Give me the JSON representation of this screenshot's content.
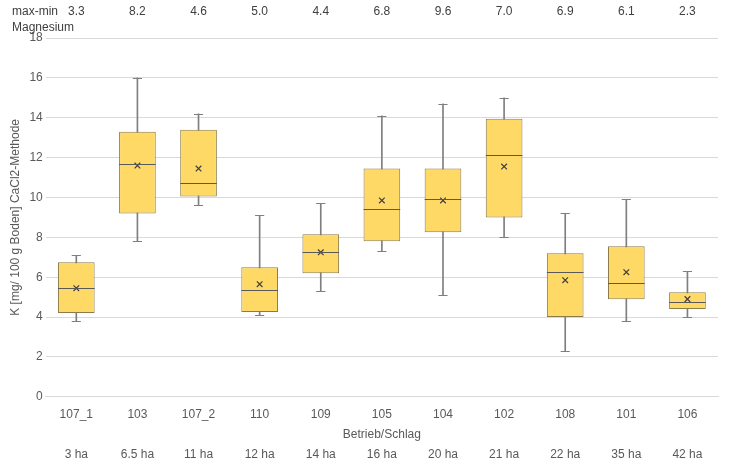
{
  "chart_data": {
    "type": "box",
    "categories": [
      "107_1",
      "103",
      "107_2",
      "110",
      "109",
      "105",
      "104",
      "102",
      "108",
      "101",
      "106"
    ],
    "secondary_categories": [
      "3 ha",
      "6.5 ha",
      "11 ha",
      "12 ha",
      "14 ha",
      "16 ha",
      "20 ha",
      "21 ha",
      "22 ha",
      "35 ha",
      "42 ha"
    ],
    "stats": {
      "min": [
        3.8,
        7.8,
        9.6,
        4.1,
        5.3,
        7.3,
        5.1,
        8.0,
        2.3,
        3.8,
        4.0
      ],
      "q1": [
        4.2,
        9.2,
        10.05,
        4.25,
        6.2,
        7.8,
        8.25,
        9.0,
        4.0,
        4.9,
        4.4
      ],
      "median": [
        5.45,
        11.7,
        10.75,
        5.35,
        7.25,
        9.4,
        9.9,
        12.15,
        6.25,
        5.7,
        4.75
      ],
      "q3": [
        6.75,
        13.3,
        13.4,
        6.5,
        8.15,
        11.45,
        11.45,
        13.95,
        7.2,
        7.55,
        5.25
      ],
      "max": [
        7.1,
        16.0,
        14.2,
        9.1,
        9.7,
        14.1,
        14.7,
        15.0,
        9.2,
        9.9,
        6.3
      ],
      "mean": [
        5.45,
        11.6,
        11.45,
        5.65,
        7.25,
        9.85,
        9.85,
        11.55,
        5.85,
        6.25,
        4.9
      ]
    },
    "xlabel": "Betrieb/Schlag",
    "ylabel": "K [mg/ 100 g Boden] CaCl2-Methode",
    "ylim": [
      0,
      18
    ],
    "yticks": [
      0,
      2,
      4,
      6,
      8,
      10,
      12,
      14,
      16,
      18
    ],
    "grid": true,
    "color": "#ffd966",
    "annotations": {
      "label": "max-min",
      "sublabel": "Magnesium",
      "values": [
        3.3,
        8.2,
        4.6,
        5.0,
        4.4,
        6.8,
        9.6,
        7.0,
        6.9,
        6.1,
        2.3
      ],
      "value_labels": [
        "3.3",
        "8.2",
        "4.6",
        "5.0",
        "4.4",
        "6.8",
        "9.6",
        "7.0",
        "6.9",
        "6.1",
        "2.3"
      ]
    }
  }
}
